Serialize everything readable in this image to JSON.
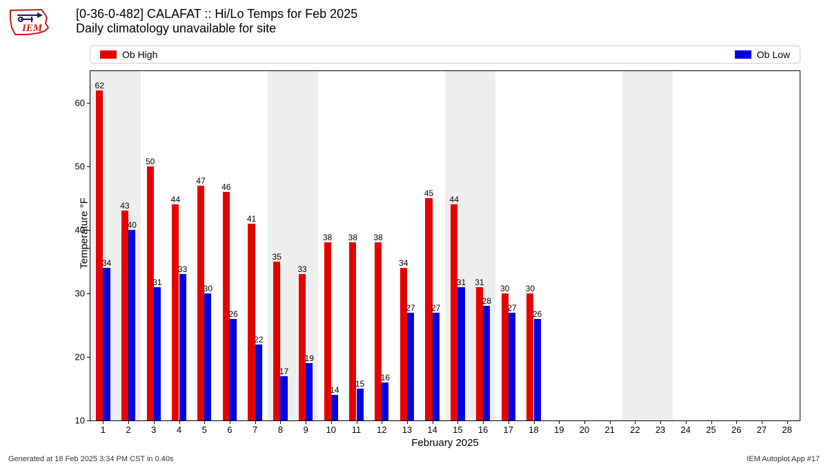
{
  "logo": {
    "iowa_fill": "#ffffff",
    "iowa_stroke": "#c01b1b",
    "glyph_color": "#16166b",
    "text": "IEM",
    "text_color": "#c01b1b"
  },
  "header": {
    "title_line1": "[0-36-0-482] CALAFAT :: Hi/Lo Temps for Feb 2025",
    "title_line2": "Daily climatology unavailable for site"
  },
  "legend": {
    "high": {
      "label": "Ob High",
      "color": "#e60000"
    },
    "low": {
      "label": "Ob Low",
      "color": "#0000e6"
    }
  },
  "chart": {
    "type": "bar",
    "background": "#ffffff",
    "weekend_band_color": "#eeeeee",
    "ylabel": "Temperature °F",
    "xlabel": "February 2025",
    "ylim_min": 10,
    "ylim_max": 65,
    "yticks": [
      10,
      20,
      30,
      40,
      50,
      60
    ],
    "days": [
      1,
      2,
      3,
      4,
      5,
      6,
      7,
      8,
      9,
      10,
      11,
      12,
      13,
      14,
      15,
      16,
      17,
      18,
      19,
      20,
      21,
      22,
      23,
      24,
      25,
      26,
      27,
      28
    ],
    "weekend_days": [
      1,
      2,
      8,
      9,
      15,
      16,
      22,
      23
    ],
    "highs": [
      62,
      43,
      50,
      44,
      47,
      46,
      41,
      35,
      33,
      38,
      38,
      38,
      34,
      45,
      44,
      31,
      30,
      30,
      null,
      null,
      null,
      null,
      null,
      null,
      null,
      null,
      null,
      null
    ],
    "lows": [
      34,
      40,
      31,
      33,
      30,
      26,
      22,
      17,
      19,
      14,
      15,
      16,
      27,
      27,
      31,
      28,
      27,
      26,
      null,
      null,
      null,
      null,
      null,
      null,
      null,
      null,
      null,
      null
    ],
    "bar_pair_width_ratio": 0.56,
    "axis_fontsize": 13,
    "barlabel_fontsize": 12
  },
  "footer": {
    "left": "Generated at 18 Feb 2025 3:34 PM CST in 0.40s",
    "right": "IEM Autoplot App #17"
  }
}
